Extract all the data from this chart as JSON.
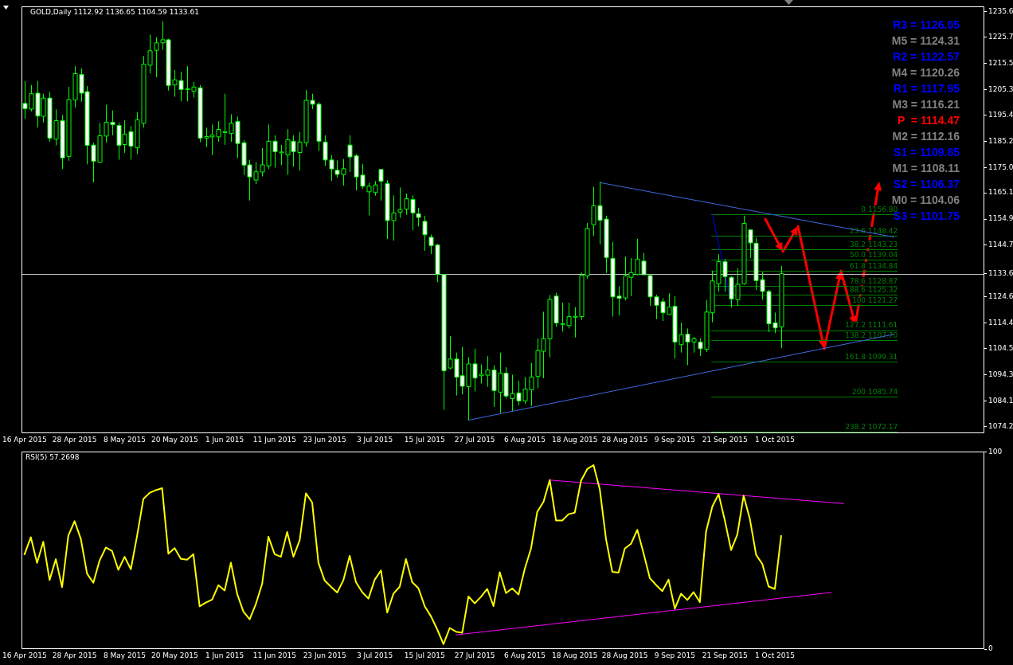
{
  "chart_data": [
    {
      "type": "candlestick",
      "title": "GOLD,Daily 1112.92 1136.65 1104.59 1133.61",
      "categories": [
        "16 Apr 2015",
        null,
        null,
        null,
        null,
        null,
        null,
        null,
        "28 Apr 2015",
        null,
        null,
        null,
        null,
        null,
        null,
        null,
        "8 May 2015",
        null,
        null,
        null,
        null,
        null,
        null,
        null,
        "20 May 2015",
        null,
        null,
        null,
        null,
        null,
        null,
        null,
        "1 Jun 2015",
        null,
        null,
        null,
        null,
        null,
        null,
        null,
        "11 Jun 2015",
        null,
        null,
        null,
        null,
        null,
        null,
        null,
        "23 Jun 2015",
        null,
        null,
        null,
        null,
        null,
        null,
        null,
        "3 Jul 2015",
        null,
        null,
        null,
        null,
        null,
        null,
        null,
        "15 Jul 2015",
        null,
        null,
        null,
        null,
        null,
        null,
        null,
        "27 Jul 2015",
        null,
        null,
        null,
        null,
        null,
        null,
        null,
        "6 Aug 2015",
        null,
        null,
        null,
        null,
        null,
        null,
        null,
        "18 Aug 2015",
        null,
        null,
        null,
        null,
        null,
        null,
        null,
        "28 Aug 2015",
        null,
        null,
        null,
        null,
        null,
        null,
        null,
        "9 Sep 2015",
        null,
        null,
        null,
        null,
        null,
        null,
        null,
        "21 Sep 2015",
        null,
        null,
        null,
        null,
        null,
        null,
        null,
        "1 Oct 2015",
        null,
        null,
        null,
        null,
        null,
        null,
        null,
        null,
        null,
        null,
        null,
        null,
        null,
        null,
        null,
        null,
        null,
        null,
        null,
        null,
        null,
        null,
        null,
        null,
        null,
        null,
        null,
        null,
        null,
        null,
        null,
        null,
        null
      ],
      "ohlc": [
        [
          1199.9,
          1208.6,
          1194.0,
          1197.9
        ],
        [
          1197.7,
          1207.1,
          1196.8,
          1203.7
        ],
        [
          1203.9,
          1208.6,
          1190.5,
          1195.0
        ],
        [
          1194.9,
          1203.7,
          1192.5,
          1202.0
        ],
        [
          1202.0,
          1204.3,
          1185.0,
          1186.4
        ],
        [
          1186.0,
          1197.6,
          1183.6,
          1193.2
        ],
        [
          1193.2,
          1195.4,
          1174.4,
          1178.7
        ],
        [
          1179.3,
          1206.4,
          1177.6,
          1201.4
        ],
        [
          1201.3,
          1214.4,
          1198.3,
          1211.5
        ],
        [
          1211.2,
          1213.5,
          1200.6,
          1203.9
        ],
        [
          1204.5,
          1206.7,
          1176.2,
          1183.6
        ],
        [
          1183.7,
          1184.6,
          1169.2,
          1177.4
        ],
        [
          1177.0,
          1192.3,
          1176.7,
          1187.3
        ],
        [
          1187.2,
          1199.4,
          1184.7,
          1192.6
        ],
        [
          1192.6,
          1197.2,
          1187.5,
          1191.6
        ],
        [
          1191.3,
          1192.3,
          1178.0,
          1183.6
        ],
        [
          1183.9,
          1193.3,
          1180.7,
          1188.0
        ],
        [
          1188.9,
          1191.1,
          1178.0,
          1183.3
        ],
        [
          1182.6,
          1196.6,
          1180.2,
          1193.5
        ],
        [
          1192.2,
          1218.4,
          1190.5,
          1215.2
        ],
        [
          1214.8,
          1226.7,
          1211.6,
          1220.4
        ],
        [
          1220.6,
          1225.7,
          1210.1,
          1223.5
        ],
        [
          1223.5,
          1231.9,
          1220.8,
          1224.7
        ],
        [
          1224.7,
          1225.1,
          1204.9,
          1206.9
        ],
        [
          1207.1,
          1212.9,
          1202.5,
          1209.1
        ],
        [
          1208.8,
          1212.3,
          1200.7,
          1205.3
        ],
        [
          1205.4,
          1214.4,
          1200.7,
          1205.6
        ],
        [
          1204.7,
          1208.3,
          1202.2,
          1206.3
        ],
        [
          1206.0,
          1207.1,
          1184.8,
          1186.4
        ],
        [
          1186.4,
          1190.5,
          1182.9,
          1187.0
        ],
        [
          1186.9,
          1191.7,
          1179.8,
          1187.6
        ],
        [
          1186.9,
          1193.0,
          1185.0,
          1189.8
        ],
        [
          1188.6,
          1203.7,
          1183.8,
          1188.9
        ],
        [
          1188.2,
          1195.7,
          1185.0,
          1192.2
        ],
        [
          1192.9,
          1194.8,
          1178.6,
          1184.3
        ],
        [
          1184.6,
          1185.6,
          1172.1,
          1175.9
        ],
        [
          1176.0,
          1178.0,
          1162.1,
          1171.3
        ],
        [
          1170.1,
          1177.0,
          1168.5,
          1173.3
        ],
        [
          1173.2,
          1182.5,
          1171.5,
          1176.0
        ],
        [
          1175.6,
          1191.7,
          1174.4,
          1185.2
        ],
        [
          1185.2,
          1187.5,
          1174.9,
          1181.1
        ],
        [
          1180.8,
          1183.8,
          1175.9,
          1181.0
        ],
        [
          1179.9,
          1189.9,
          1172.1,
          1185.8
        ],
        [
          1185.2,
          1187.5,
          1175.3,
          1181.1
        ],
        [
          1180.8,
          1188.7,
          1173.8,
          1184.9
        ],
        [
          1184.6,
          1205.2,
          1183.0,
          1201.1
        ],
        [
          1201.1,
          1203.7,
          1197.7,
          1199.6
        ],
        [
          1199.6,
          1200.5,
          1181.4,
          1185.2
        ],
        [
          1184.9,
          1187.5,
          1175.6,
          1177.9
        ],
        [
          1177.9,
          1179.8,
          1169.8,
          1174.4
        ],
        [
          1173.9,
          1177.7,
          1171.0,
          1172.3
        ],
        [
          1172.2,
          1178.3,
          1167.9,
          1174.5
        ],
        [
          1183.7,
          1187.5,
          1173.2,
          1179.1
        ],
        [
          1179.5,
          1180.1,
          1166.1,
          1171.3
        ],
        [
          1172.0,
          1176.4,
          1166.7,
          1167.7
        ],
        [
          1165.5,
          1169.0,
          1156.3,
          1167.7
        ],
        [
          1165.2,
          1169.7,
          1164.0,
          1168.2
        ],
        [
          1174.2,
          1174.3,
          1162.1,
          1169.6
        ],
        [
          1168.7,
          1170.0,
          1147.1,
          1154.3
        ],
        [
          1154.3,
          1164.1,
          1146.5,
          1157.3
        ],
        [
          1157.6,
          1167.2,
          1155.4,
          1158.6
        ],
        [
          1158.8,
          1164.8,
          1156.6,
          1162.8
        ],
        [
          1162.5,
          1164.1,
          1150.5,
          1157.3
        ],
        [
          1157.0,
          1159.3,
          1152.0,
          1155.5
        ],
        [
          1154.0,
          1156.2,
          1142.5,
          1148.8
        ],
        [
          1147.8,
          1148.9,
          1141.3,
          1144.5
        ],
        [
          1144.8,
          1145.2,
          1130.3,
          1133.3
        ],
        [
          1133.3,
          1133.4,
          1080.6,
          1095.8
        ],
        [
          1096.9,
          1109.4,
          1096.4,
          1100.4
        ],
        [
          1100.4,
          1102.9,
          1086.2,
          1093.3
        ],
        [
          1093.9,
          1105.1,
          1086.6,
          1089.8
        ],
        [
          1089.6,
          1101.1,
          1076.5,
          1098.5
        ],
        [
          1098.5,
          1104.4,
          1087.8,
          1093.0
        ],
        [
          1093.9,
          1098.3,
          1090.9,
          1094.5
        ],
        [
          1094.1,
          1101.5,
          1089.6,
          1096.1
        ],
        [
          1096.1,
          1098.0,
          1081.7,
          1088.1
        ],
        [
          1087.5,
          1102.9,
          1079.4,
          1094.9
        ],
        [
          1094.9,
          1097.2,
          1085.0,
          1086.0
        ],
        [
          1085.0,
          1094.3,
          1080.2,
          1086.9
        ],
        [
          1087.2,
          1091.9,
          1082.4,
          1084.1
        ],
        [
          1084.1,
          1093.4,
          1082.9,
          1088.7
        ],
        [
          1088.4,
          1098.9,
          1082.1,
          1093.4
        ],
        [
          1093.6,
          1108.4,
          1089.0,
          1103.7
        ],
        [
          1103.4,
          1118.8,
          1092.9,
          1108.3
        ],
        [
          1108.3,
          1125.3,
          1101.0,
          1123.6
        ],
        [
          1124.9,
          1126.2,
          1112.9,
          1114.4
        ],
        [
          1114.0,
          1122.3,
          1111.1,
          1114.2
        ],
        [
          1113.4,
          1122.3,
          1112.3,
          1116.9
        ],
        [
          1116.9,
          1120.6,
          1108.8,
          1117.0
        ],
        [
          1116.9,
          1134.0,
          1115.6,
          1133.0
        ],
        [
          1132.8,
          1153.4,
          1131.7,
          1151.2
        ],
        [
          1152.7,
          1167.5,
          1148.3,
          1160.1
        ],
        [
          1160.1,
          1169.3,
          1145.0,
          1154.4
        ],
        [
          1154.9,
          1156.2,
          1133.9,
          1139.9
        ],
        [
          1139.6,
          1146.0,
          1116.9,
          1124.6
        ],
        [
          1124.9,
          1128.7,
          1117.4,
          1124.0
        ],
        [
          1124.2,
          1140.2,
          1123.2,
          1132.8
        ],
        [
          1132.2,
          1139.7,
          1124.9,
          1134.0
        ],
        [
          1133.3,
          1147.2,
          1133.0,
          1139.3
        ],
        [
          1138.5,
          1141.7,
          1133.2,
          1133.2
        ],
        [
          1132.9,
          1133.5,
          1121.1,
          1124.6
        ],
        [
          1124.6,
          1125.4,
          1115.9,
          1121.3
        ],
        [
          1122.7,
          1124.1,
          1115.2,
          1118.4
        ],
        [
          1117.7,
          1126.0,
          1117.7,
          1120.6
        ],
        [
          1120.9,
          1124.8,
          1100.6,
          1107.0
        ],
        [
          1106.0,
          1114.6,
          1102.9,
          1109.9
        ],
        [
          1110.1,
          1112.3,
          1098.0,
          1107.0
        ],
        [
          1107.0,
          1109.0,
          1102.9,
          1108.3
        ],
        [
          1107.0,
          1108.4,
          1101.6,
          1104.4
        ],
        [
          1104.2,
          1123.3,
          1103.1,
          1118.7
        ],
        [
          1118.4,
          1134.8,
          1114.7,
          1130.8
        ],
        [
          1129.7,
          1141.2,
          1126.6,
          1138.3
        ],
        [
          1138.3,
          1139.4,
          1126.6,
          1132.5
        ],
        [
          1132.2,
          1132.7,
          1120.5,
          1123.8
        ],
        [
          1123.5,
          1135.8,
          1121.1,
          1129.5
        ],
        [
          1129.7,
          1156.2,
          1129.3,
          1153.2
        ],
        [
          1150.7,
          1150.8,
          1139.7,
          1145.6
        ],
        [
          1145.5,
          1147.6,
          1127.2,
          1130.9
        ],
        [
          1131.3,
          1134.3,
          1123.5,
          1126.7
        ],
        [
          1126.7,
          1127.4,
          1110.9,
          1114.1
        ],
        [
          1114.5,
          1118.5,
          1110.5,
          1112.5
        ],
        [
          1112.92,
          1136.65,
          1104.59,
          1133.61
        ],
        null,
        null,
        null,
        null,
        null,
        null,
        null,
        null,
        null,
        null,
        null,
        null,
        null,
        null,
        null,
        null,
        null,
        null,
        null,
        null,
        null,
        null,
        null,
        null,
        null,
        null,
        null,
        null,
        null,
        null,
        null,
        null
      ],
      "color": "#00ff00",
      "colors": [
        "#ffffff",
        "#000000",
        "#ffffff",
        "#000000",
        "#ffffff",
        "#000000",
        "#ffffff",
        "#000000",
        "#000000",
        "#ffffff",
        "#ffffff",
        "#ffffff",
        "#000000",
        "#000000",
        "#ffffff",
        "#ffffff",
        "#000000",
        "#ffffff",
        "#000000",
        "#000000",
        "#000000",
        "#000000",
        "#000000",
        "#ffffff",
        "#000000",
        "#ffffff",
        "#000000",
        "#000000",
        "#ffffff",
        "#000000",
        "#000000",
        "#000000",
        "#000000",
        "#000000",
        "#ffffff",
        "#ffffff",
        "#ffffff",
        "#000000",
        "#000000",
        "#000000",
        "#ffffff",
        "#000000",
        "#000000",
        "#ffffff",
        "#000000",
        "#000000",
        "#ffffff",
        "#ffffff",
        "#ffffff",
        "#ffffff",
        "#ffffff",
        "#000000",
        "#ffffff",
        "#ffffff",
        "#ffffff",
        "#000000",
        "#000000",
        "#ffffff",
        "#ffffff",
        "#000000",
        "#000000",
        "#000000",
        "#ffffff",
        "#ffffff",
        "#ffffff",
        "#ffffff",
        "#ffffff",
        "#ffffff",
        "#000000",
        "#ffffff",
        "#ffffff",
        "#000000",
        "#ffffff",
        "#000000",
        "#000000",
        "#ffffff",
        "#000000",
        "#ffffff",
        "#000000",
        "#ffffff",
        "#000000",
        "#000000",
        "#000000",
        "#000000",
        "#000000",
        "#ffffff",
        "#000000",
        "#000000",
        "#000000",
        "#000000",
        "#000000",
        "#000000",
        "#ffffff",
        "#ffffff",
        "#ffffff",
        "#ffffff",
        "#000000",
        "#000000",
        "#000000",
        "#ffffff",
        "#ffffff",
        "#ffffff",
        "#ffffff",
        "#000000",
        "#ffffff",
        "#000000",
        "#ffffff",
        "#000000",
        "#ffffff",
        "#000000",
        "#000000",
        "#000000",
        "#ffffff",
        "#ffffff",
        "#000000",
        "#000000",
        "#ffffff",
        "#ffffff",
        "#ffffff",
        "#ffffff",
        "#ffffff",
        "#000000",
        null,
        null,
        null,
        null,
        null,
        null,
        null,
        null,
        null,
        null,
        null,
        null,
        null,
        null,
        null,
        null,
        null,
        null,
        null,
        null,
        null,
        null,
        null,
        null,
        null,
        null,
        null,
        null,
        null,
        null,
        null,
        null
      ],
      "series": [
        {
          "type": "line",
          "color": "#4169e1",
          "values": [
            null,
            null,
            null,
            null,
            null,
            null,
            null,
            null,
            null,
            null,
            null,
            null,
            null,
            null,
            null,
            null,
            null,
            null,
            null,
            null,
            null,
            null,
            null,
            null,
            null,
            null,
            null,
            null,
            null,
            null,
            null,
            null,
            null,
            null,
            null,
            null,
            null,
            null,
            null,
            null,
            null,
            null,
            null,
            null,
            null,
            null,
            null,
            null,
            null,
            null,
            null,
            null,
            null,
            null,
            null,
            null,
            null,
            null,
            null,
            null,
            null,
            null,
            null,
            null,
            null,
            null,
            null,
            null,
            null,
            null,
            null,
            null,
            null,
            null,
            null,
            null,
            null,
            null,
            null,
            null,
            null,
            null,
            null,
            null,
            null,
            null,
            null,
            null,
            null,
            null,
            null,
            null,
            1169.1,
            null,
            null,
            null,
            null,
            null,
            null,
            null,
            null,
            null,
            null,
            null,
            null,
            null,
            null,
            null,
            null,
            null,
            null,
            null,
            null,
            null,
            null,
            null,
            null,
            null,
            null,
            null,
            null,
            null,
            null,
            null,
            null,
            null,
            null,
            null,
            null,
            null,
            null,
            null,
            null,
            null,
            null,
            null,
            null,
            null,
            null,
            1147.9,
            null,
            null,
            null,
            null,
            null,
            null,
            null,
            null,
            null,
            null,
            null,
            null,
            null,
            null
          ]
        },
        {
          "type": "line",
          "color": "#4169e1",
          "values": [
            null,
            null,
            null,
            null,
            null,
            null,
            null,
            null,
            null,
            null,
            null,
            null,
            null,
            null,
            null,
            null,
            null,
            null,
            null,
            null,
            null,
            null,
            null,
            null,
            null,
            null,
            null,
            null,
            null,
            null,
            null,
            null,
            null,
            null,
            null,
            null,
            null,
            null,
            null,
            null,
            null,
            null,
            null,
            null,
            null,
            null,
            null,
            null,
            null,
            null,
            null,
            null,
            null,
            null,
            null,
            null,
            null,
            null,
            null,
            null,
            null,
            null,
            null,
            null,
            null,
            null,
            null,
            null,
            null,
            null,
            null,
            1076.6,
            null,
            null,
            null,
            null,
            null,
            null,
            null,
            null,
            null,
            null,
            null,
            null,
            null,
            null,
            null,
            null,
            null,
            null,
            null,
            null,
            null,
            null,
            null,
            null,
            null,
            null,
            null,
            null,
            null,
            null,
            null,
            null,
            null,
            null,
            null,
            null,
            null,
            null,
            null,
            null,
            null,
            null,
            null,
            null,
            null,
            null,
            null,
            null,
            null,
            null,
            null,
            null,
            null,
            null,
            null,
            null,
            null,
            null,
            null,
            null,
            null,
            null,
            null,
            null,
            null,
            null,
            null,
            1110.0,
            null,
            null,
            null,
            null,
            null,
            null,
            null,
            null,
            null,
            null,
            null,
            null,
            null,
            null
          ]
        },
        {
          "type": "line",
          "color": "#0000ff",
          "line_style": "dotted",
          "values": [
            null,
            null,
            null,
            null,
            null,
            null,
            null,
            null,
            null,
            null,
            null,
            null,
            null,
            null,
            null,
            null,
            null,
            null,
            null,
            null,
            null,
            null,
            null,
            null,
            null,
            null,
            null,
            null,
            null,
            null,
            null,
            null,
            null,
            null,
            null,
            null,
            null,
            null,
            null,
            null,
            null,
            null,
            null,
            null,
            null,
            null,
            null,
            null,
            null,
            null,
            null,
            null,
            null,
            null,
            null,
            null,
            null,
            null,
            null,
            null,
            null,
            null,
            null,
            null,
            null,
            null,
            null,
            null,
            null,
            null,
            null,
            null,
            null,
            null,
            null,
            null,
            null,
            null,
            null,
            null,
            null,
            null,
            null,
            null,
            null,
            null,
            null,
            null,
            null,
            null,
            null,
            null,
            null,
            null,
            null,
            null,
            null,
            null,
            null,
            null,
            null,
            null,
            null,
            null,
            null,
            null,
            null,
            null,
            null,
            null,
            1156.8,
            null,
            null,
            1122.2,
            null,
            null,
            null,
            null,
            null,
            null,
            null,
            null,
            null,
            null,
            null,
            null,
            null,
            null,
            null,
            null,
            null,
            null,
            null,
            null,
            null,
            null,
            null,
            null,
            null,
            null,
            null,
            null,
            null,
            null,
            null,
            null,
            null,
            null,
            null,
            null,
            null,
            null,
            null,
            null
          ]
        }
      ],
      "ylim": [
        1071.5,
        1237.7
      ],
      "yticks": [
        1235.6,
        1225.7,
        1215.5,
        1205.3,
        1195.4,
        1185.2,
        {
          "value": 1175,
          "label": "1175.0"
        },
        1165.1,
        1154.9,
        1144.7,
        {
          "value": 1133.61,
          "label": "1133.6"
        },
        1124.6,
        1114.4,
        1104.5,
        1094.3,
        1084.1,
        1074.2
      ],
      "ref_lines": [
        {
          "axis": "y",
          "value": 1133.61,
          "color": "#c0c0c0"
        },
        {
          "axis": "y",
          "value": 1156.8,
          "label": "0 1156.80",
          "color": "#008000"
        },
        {
          "axis": "y",
          "value": 1148.42,
          "label": "23.6 1148.42",
          "color": "#008000"
        },
        {
          "axis": "y",
          "value": 1143.23,
          "label": "38.2 1143.23",
          "color": "#008000"
        },
        {
          "axis": "y",
          "value": 1139.04,
          "label": "50.0 1139.04",
          "color": "#008000"
        },
        {
          "axis": "y",
          "value": 1134.84,
          "label": "61.8 1134.84",
          "color": "#008000"
        },
        {
          "axis": "y",
          "value": 1128.87,
          "label": "78.6 1128.87",
          "color": "#008000"
        },
        {
          "axis": "y",
          "value": 1125.32,
          "label": "88.6 1125.32",
          "color": "#008000"
        },
        {
          "axis": "y",
          "value": 1121.27,
          "label": "100 1121.27",
          "color": "#008000"
        },
        {
          "axis": "y",
          "value": 1111.61,
          "label": "127.2 1111.61",
          "color": "#008000"
        },
        {
          "axis": "y",
          "value": 1107.7,
          "label": "138.2 1107.70",
          "color": "#008000"
        },
        {
          "axis": "y",
          "value": 1099.31,
          "label": "161.8 1099.31",
          "color": "#008000"
        },
        {
          "axis": "y",
          "value": 1085.74,
          "label": "200 1085.74",
          "color": "#008000"
        },
        {
          "axis": "y",
          "value": 1072.17,
          "label": "238.2 1072.17",
          "color": "#008000"
        }
      ],
      "annotations": [
        "R3 = 1126.05",
        "M5 = 1124.31",
        "R2 = 1122.57",
        "M4 = 1120.26",
        "R1 = 1117.95",
        "M3 = 1116.21",
        "P  = 1114.47",
        "M2 = 1112.16",
        "S1 = 1109.85",
        "M1 = 1108.11",
        "S2 = 1106.37",
        "M0 = 1104.06",
        "S3 = 1101.75"
      ]
    },
    {
      "type": "line",
      "title": "RSI(5) 57.2698",
      "categories": [
        "16 Apr 2015",
        null,
        null,
        null,
        null,
        null,
        null,
        null,
        "28 Apr 2015",
        null,
        null,
        null,
        null,
        null,
        null,
        null,
        "8 May 2015",
        null,
        null,
        null,
        null,
        null,
        null,
        null,
        "20 May 2015",
        null,
        null,
        null,
        null,
        null,
        null,
        null,
        "1 Jun 2015",
        null,
        null,
        null,
        null,
        null,
        null,
        null,
        "11 Jun 2015",
        null,
        null,
        null,
        null,
        null,
        null,
        null,
        "23 Jun 2015",
        null,
        null,
        null,
        null,
        null,
        null,
        null,
        "3 Jul 2015",
        null,
        null,
        null,
        null,
        null,
        null,
        null,
        "15 Jul 2015",
        null,
        null,
        null,
        null,
        null,
        null,
        null,
        "27 Jul 2015",
        null,
        null,
        null,
        null,
        null,
        null,
        null,
        "6 Aug 2015",
        null,
        null,
        null,
        null,
        null,
        null,
        null,
        "18 Aug 2015",
        null,
        null,
        null,
        null,
        null,
        null,
        null,
        "28 Aug 2015",
        null,
        null,
        null,
        null,
        null,
        null,
        null,
        "9 Sep 2015",
        null,
        null,
        null,
        null,
        null,
        null,
        null,
        "21 Sep 2015",
        null,
        null,
        null,
        null,
        null,
        null,
        null,
        "1 Oct 2015",
        null,
        null,
        null,
        null,
        null,
        null,
        null,
        null,
        null,
        null,
        null,
        null,
        null,
        null,
        null,
        null,
        null,
        null,
        null,
        null,
        null,
        null,
        null,
        null,
        null,
        null,
        null,
        null,
        null,
        null,
        null,
        null,
        null
      ],
      "series": [
        {
          "color": "#ffff00",
          "values": [
            48.1,
            56.7,
            43.7,
            54.4,
            35.0,
            45.6,
            31.4,
            57.5,
            64.9,
            55.9,
            38.2,
            33.6,
            44.9,
            51.5,
            49.7,
            40.2,
            46.8,
            40.5,
            57.5,
            76.1,
            79.2,
            80.6,
            81.6,
            48.4,
            51.2,
            45.7,
            45.3,
            48.1,
            21.7,
            23.6,
            25.1,
            32.4,
            29.7,
            43.8,
            28.0,
            19.0,
            15.1,
            22.9,
            33.1,
            57.0,
            48.1,
            46.8,
            59.4,
            46.8,
            55.2,
            79.0,
            74.3,
            43.8,
            34.7,
            31.6,
            28.7,
            35.0,
            47.3,
            33.9,
            28.9,
            25.6,
            35.2,
            39.9,
            18.5,
            28.1,
            31.6,
            45.6,
            33.9,
            30.8,
            21.7,
            16.6,
            10.0,
            2.5,
            10.7,
            8.8,
            8.3,
            26.7,
            23.2,
            26.5,
            30.5,
            21.8,
            39.0,
            28.4,
            30.8,
            27.6,
            40.7,
            51.0,
            69.6,
            74.7,
            85.7,
            65.2,
            65.2,
            68.4,
            69.2,
            85.4,
            91.3,
            93.3,
            81.0,
            55.7,
            39.2,
            38.8,
            51.0,
            53.4,
            60.5,
            48.6,
            36.0,
            32.5,
            29.4,
            35.2,
            20.5,
            28.1,
            24.9,
            28.9,
            23.8,
            59.7,
            72.3,
            78.6,
            65.2,
            50.2,
            58.1,
            77.8,
            66.0,
            47.8,
            43.1,
            31.7,
            30.5,
            57.2698,
            null,
            null,
            null,
            null,
            null,
            null,
            null,
            null,
            null,
            null,
            null,
            null,
            null,
            null,
            null,
            null,
            null,
            null,
            null,
            null,
            null,
            null,
            null,
            null,
            null,
            null,
            null,
            null,
            null,
            null,
            null,
            null
          ]
        },
        {
          "type": "line",
          "color": "#ff00ff",
          "values": [
            null,
            null,
            null,
            null,
            null,
            null,
            null,
            null,
            null,
            null,
            null,
            null,
            null,
            null,
            null,
            null,
            null,
            null,
            null,
            null,
            null,
            null,
            null,
            null,
            null,
            null,
            null,
            null,
            null,
            null,
            null,
            null,
            null,
            null,
            null,
            null,
            null,
            null,
            null,
            null,
            null,
            null,
            null,
            null,
            null,
            null,
            null,
            null,
            null,
            null,
            null,
            null,
            null,
            null,
            null,
            null,
            null,
            null,
            null,
            null,
            null,
            null,
            null,
            null,
            null,
            null,
            null,
            null,
            null,
            null,
            null,
            null,
            null,
            null,
            null,
            null,
            null,
            null,
            null,
            null,
            null,
            null,
            null,
            null,
            85.7,
            null,
            null,
            null,
            null,
            null,
            null,
            null,
            null,
            null,
            null,
            null,
            null,
            null,
            null,
            null,
            null,
            null,
            null,
            null,
            null,
            null,
            null,
            null,
            null,
            null,
            null,
            null,
            null,
            null,
            null,
            null,
            null,
            null,
            null,
            null,
            null,
            null,
            null,
            null,
            null,
            null,
            null,
            null,
            null,
            null,
            null,
            73.8,
            null,
            null,
            null,
            null,
            null,
            null,
            null,
            null,
            null,
            null,
            null,
            null,
            null,
            null,
            null,
            null,
            null,
            null,
            null,
            null,
            null,
            null
          ]
        },
        {
          "type": "line",
          "color": "#ff00ff",
          "values": [
            null,
            null,
            null,
            null,
            null,
            null,
            null,
            null,
            null,
            null,
            null,
            null,
            null,
            null,
            null,
            null,
            null,
            null,
            null,
            null,
            null,
            null,
            null,
            null,
            null,
            null,
            null,
            null,
            null,
            null,
            null,
            null,
            null,
            null,
            null,
            null,
            null,
            null,
            null,
            null,
            null,
            null,
            null,
            null,
            null,
            null,
            null,
            null,
            null,
            null,
            null,
            null,
            null,
            null,
            null,
            null,
            null,
            null,
            null,
            null,
            null,
            null,
            null,
            null,
            null,
            null,
            null,
            null,
            null,
            7.2,
            null,
            null,
            null,
            null,
            null,
            null,
            null,
            null,
            null,
            null,
            null,
            null,
            null,
            null,
            null,
            null,
            null,
            null,
            null,
            null,
            null,
            null,
            null,
            null,
            null,
            null,
            null,
            null,
            null,
            null,
            null,
            null,
            null,
            null,
            null,
            null,
            null,
            null,
            null,
            null,
            null,
            null,
            null,
            null,
            null,
            null,
            null,
            null,
            null,
            null,
            null,
            null,
            null,
            null,
            null,
            null,
            null,
            null,
            null,
            28.7,
            null,
            null,
            null,
            null,
            null,
            null,
            null,
            null,
            null,
            null,
            null,
            null,
            null,
            null,
            null,
            null,
            null,
            null,
            null,
            null,
            null,
            null,
            null,
            null
          ]
        }
      ],
      "ylim": [
        0,
        100
      ],
      "yticks": [
        0,
        100
      ]
    }
  ]
}
